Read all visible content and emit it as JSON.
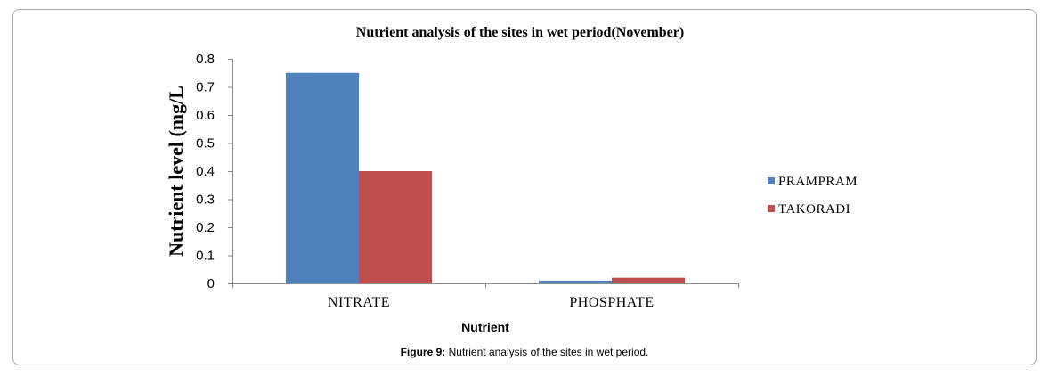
{
  "chart_data": {
    "type": "bar",
    "title": "Nutrient  analysis of the sites in wet period(November)",
    "xlabel": "Nutrient",
    "ylabel": "Nutrient level (mg/L",
    "categories": [
      "NITRATE",
      "PHOSPHATE"
    ],
    "series": [
      {
        "name": "PRAMPRAM",
        "values": [
          0.75,
          0.01
        ],
        "color": "#4f81bd"
      },
      {
        "name": "TAKORADI",
        "values": [
          0.4,
          0.02
        ],
        "color": "#c0504d"
      }
    ],
    "ylim": [
      0,
      0.8
    ],
    "yticks": [
      "0",
      "0.1",
      "0.2",
      "0.3",
      "0.4",
      "0.5",
      "0.6",
      "0.7",
      "0.8"
    ],
    "grid": false,
    "legend_position": "right"
  },
  "caption": {
    "label": "Figure 9:",
    "text": " Nutrient analysis of the sites in wet period."
  }
}
